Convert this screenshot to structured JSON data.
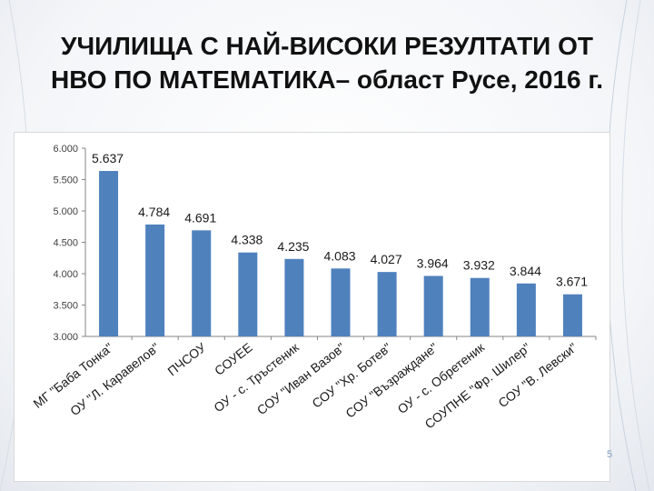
{
  "slide": {
    "title_line1": "УЧИЛИЩА С НАЙ-ВИСОКИ РЕЗУЛТАТИ ОТ",
    "title_line2": "НВО ПО МАТЕМАТИКА– област Русе, 2016 г.",
    "page_number": "5"
  },
  "colors": {
    "bar": "#4f81bd",
    "axis": "#868686",
    "gridline": "#d9d9d9"
  },
  "chart_data": {
    "type": "bar",
    "title": "",
    "xlabel": "",
    "ylabel": "",
    "ylim": [
      3.0,
      6.0
    ],
    "yticks": [
      "3.000",
      "3.500",
      "4.000",
      "4.500",
      "5.000",
      "5.500",
      "6.000"
    ],
    "categories": [
      "МГ \"Баба Тонка\"",
      "ОУ \"Л. Каравелов\"",
      "ПЧСОУ",
      "СОУЕЕ",
      "ОУ - с. Тръстеник",
      "СОУ \"Иван Вазов\"",
      "СОУ \"Хр. Ботев\"",
      "СОУ \"Възраждане\"",
      "ОУ - с. Обретеник",
      "СОУПНЕ \"Фр. Шилер\"",
      "СОУ \"В. Левски\""
    ],
    "values": [
      5.637,
      4.784,
      4.691,
      4.338,
      4.235,
      4.083,
      4.027,
      3.964,
      3.932,
      3.844,
      3.671
    ],
    "value_labels": [
      "5.637",
      "4.784",
      "4.691",
      "4.338",
      "4.235",
      "4.083",
      "4.027",
      "3.964",
      "3.932",
      "3.844",
      "3.671"
    ],
    "grid": false,
    "legend": "none"
  }
}
